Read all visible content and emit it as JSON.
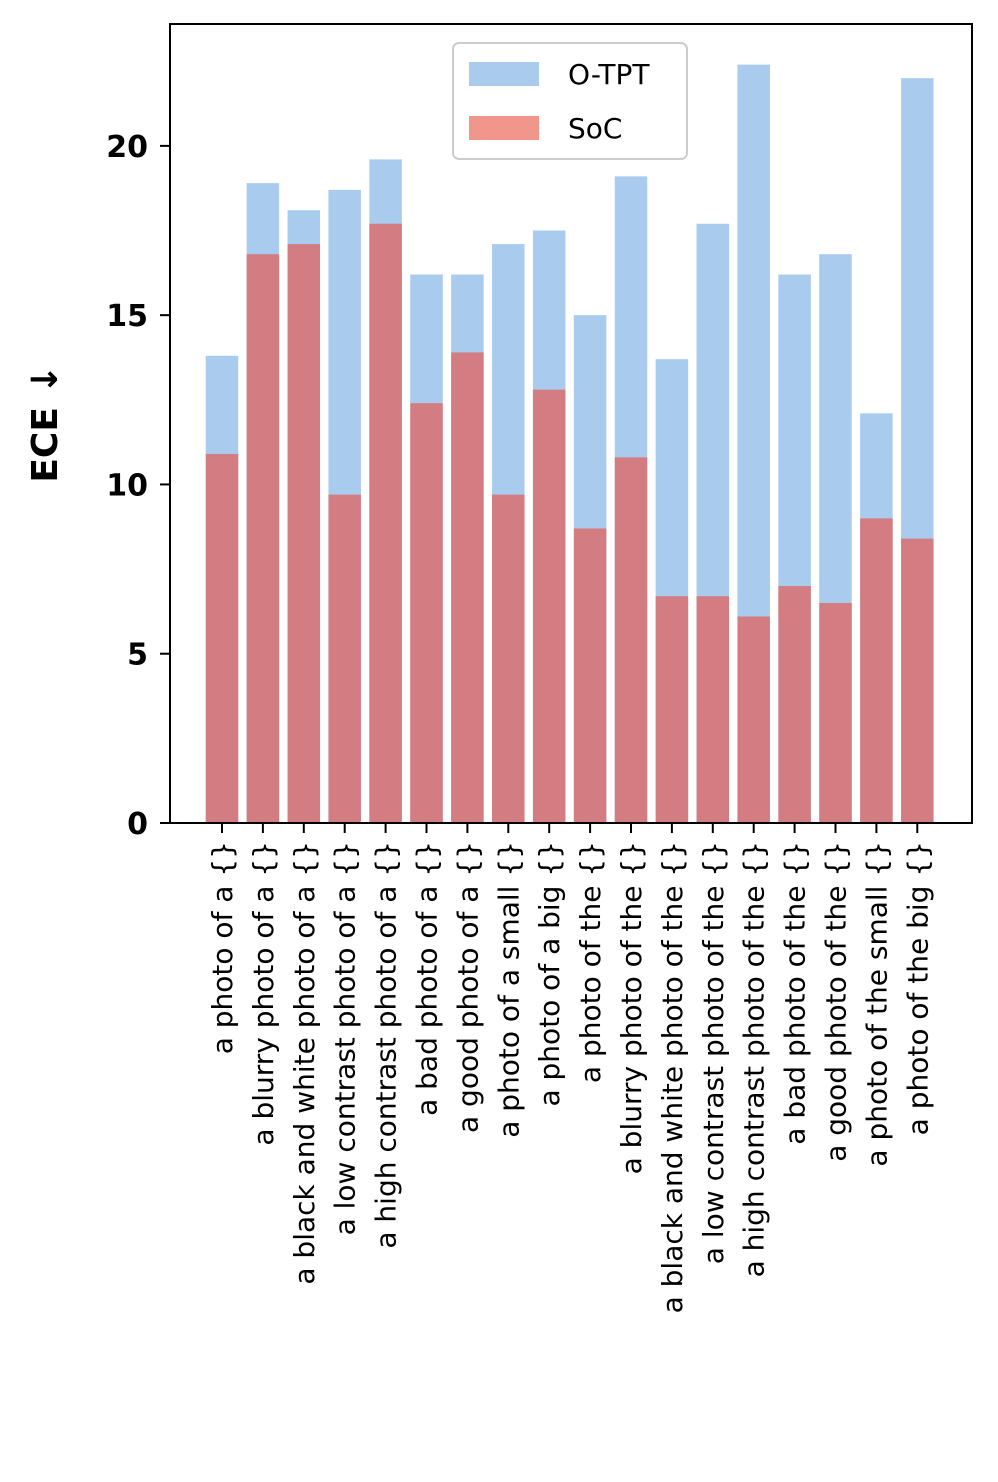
{
  "chart_data": {
    "type": "bar",
    "title": "",
    "xlabel": "",
    "ylabel": "ECE  ↓",
    "ylim": [
      0,
      23.6
    ],
    "yticks": [
      "0",
      "5",
      "10",
      "15",
      "20"
    ],
    "categories": [
      "a photo of a {}",
      "a blurry photo of a {}",
      "a black and white photo of a {}",
      "a low contrast photo of a {}",
      "a high contrast photo of a {}",
      "a bad photo of a {}",
      "a good photo of a {}",
      "a photo of a small {}",
      "a photo of a big {}",
      "a photo of the {}",
      "a blurry photo of the {}",
      "a black and white photo of the {}",
      "a low contrast photo of the {}",
      "a high contrast photo of the {}",
      "a bad photo of the {}",
      "a good photo of the {}",
      "a photo of the small {}",
      "a photo of the big {}"
    ],
    "series": [
      {
        "name": "O-TPT",
        "color": "#a9cbee",
        "values": [
          13.8,
          18.9,
          18.1,
          18.7,
          19.6,
          16.2,
          16.2,
          17.1,
          17.5,
          15.0,
          19.1,
          13.7,
          17.7,
          22.4,
          16.2,
          16.8,
          12.1,
          22.0
        ]
      },
      {
        "name": "SoC",
        "color": "#d37d82",
        "legend_color": "#f0968a",
        "values": [
          10.9,
          16.8,
          17.1,
          9.7,
          17.7,
          12.4,
          13.9,
          9.7,
          12.8,
          8.7,
          10.8,
          6.7,
          6.7,
          6.1,
          7.0,
          6.5,
          9.0,
          8.4
        ]
      }
    ],
    "legend": {
      "placement": "top-center"
    },
    "grid": false
  }
}
